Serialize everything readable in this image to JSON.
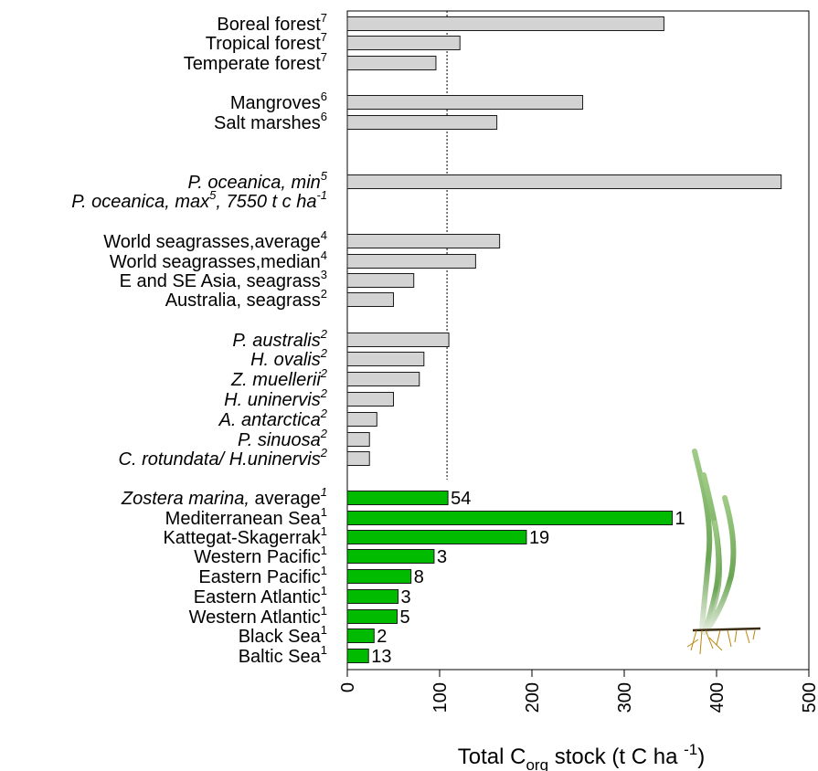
{
  "chart_data": {
    "type": "bar",
    "orientation": "horizontal",
    "xlabel": "Total C",
    "xlabel_sub": "org",
    "xlabel_rest": " stock (t C ha ",
    "xlabel_sup": "-1",
    "xlabel_close": ")",
    "xlim": [
      0,
      500
    ],
    "xticks": [
      "0",
      "100",
      "200",
      "300",
      "400",
      "500"
    ],
    "reference_line": 108,
    "colors": {
      "gray": "#d3d3d3",
      "green": "#00bb00",
      "bar_stroke": "#1a1a1a"
    },
    "bars": [
      {
        "label": "Boreal forest",
        "sup": "7",
        "italic": false,
        "value": 343,
        "color": "gray",
        "n": ""
      },
      {
        "label": "Tropical forest",
        "sup": "7",
        "italic": false,
        "value": 122,
        "color": "gray",
        "n": ""
      },
      {
        "label": "Temperate forest",
        "sup": "7",
        "italic": false,
        "value": 96,
        "color": "gray",
        "n": ""
      },
      {
        "label": "Mangroves",
        "sup": "6",
        "italic": false,
        "value": 255,
        "color": "gray",
        "n": ""
      },
      {
        "label": "Salt marshes",
        "sup": "6",
        "italic": false,
        "value": 162,
        "color": "gray",
        "n": ""
      },
      {
        "label": "P. oceanica, min",
        "sup": "5",
        "italic": true,
        "value": 470,
        "color": "gray",
        "n": ""
      },
      {
        "label": "P. oceanica, max",
        "sup": "5",
        "italic": true,
        "suffix": ", 7550 t c ha",
        "suffix_sup": "-1",
        "value": null,
        "color": "gray",
        "n": ""
      },
      {
        "label": "World seagrasses,average",
        "sup": "4",
        "italic": false,
        "value": 165,
        "color": "gray",
        "n": ""
      },
      {
        "label": "World seagrasses,median",
        "sup": "4",
        "italic": false,
        "value": 139,
        "color": "gray",
        "n": ""
      },
      {
        "label": "E and SE Asia, seagrass",
        "sup": "3",
        "italic": false,
        "value": 72,
        "color": "gray",
        "n": ""
      },
      {
        "label": "Australia, seagrass",
        "sup": "2",
        "italic": false,
        "value": 50,
        "color": "gray",
        "n": ""
      },
      {
        "label": "P. australis",
        "sup": "2",
        "italic": true,
        "value": 110,
        "color": "gray",
        "n": ""
      },
      {
        "label": "H. ovalis",
        "sup": "2",
        "italic": true,
        "value": 83,
        "color": "gray",
        "n": ""
      },
      {
        "label": "Z. muellerii",
        "sup": "2",
        "italic": true,
        "value": 78,
        "color": "gray",
        "n": ""
      },
      {
        "label": "H. uninervis",
        "sup": "2",
        "italic": true,
        "value": 50,
        "color": "gray",
        "n": ""
      },
      {
        "label": "A. antarctica",
        "sup": "2",
        "italic": true,
        "value": 32,
        "color": "gray",
        "n": ""
      },
      {
        "label": "P. sinuosa",
        "sup": "2",
        "italic": true,
        "value": 24,
        "color": "gray",
        "n": ""
      },
      {
        "label": "C. rotundata/ H.uninervis",
        "sup": "2",
        "italic": true,
        "value": 24,
        "color": "gray",
        "n": ""
      },
      {
        "label": "Zostera marina,",
        "label_rest": " average",
        "sup": "1",
        "italic": true,
        "value": 109,
        "color": "green",
        "n": "54"
      },
      {
        "label": "Mediterranean Sea",
        "sup": "1",
        "italic": false,
        "value": 352,
        "color": "green",
        "n": "1"
      },
      {
        "label": "Kattegat-Skagerrak",
        "sup": "1",
        "italic": false,
        "value": 194,
        "color": "green",
        "n": "19"
      },
      {
        "label": "Western Pacific",
        "sup": "1",
        "italic": false,
        "value": 94,
        "color": "green",
        "n": "3"
      },
      {
        "label": "Eastern Pacific",
        "sup": "1",
        "italic": false,
        "value": 69,
        "color": "green",
        "n": "8"
      },
      {
        "label": "Eastern Atlantic",
        "sup": "1",
        "italic": false,
        "value": 55,
        "color": "green",
        "n": "3"
      },
      {
        "label": "Western Atlantic",
        "sup": "1",
        "italic": false,
        "value": 54,
        "color": "green",
        "n": "5"
      },
      {
        "label": "Black Sea",
        "sup": "1",
        "italic": false,
        "value": 29,
        "color": "green",
        "n": "2"
      },
      {
        "label": "Baltic Sea",
        "sup": "1",
        "italic": false,
        "value": 23,
        "color": "green",
        "n": "13"
      }
    ],
    "grid": false,
    "legend": "none",
    "illustration": "seagrass-plant-icon"
  }
}
